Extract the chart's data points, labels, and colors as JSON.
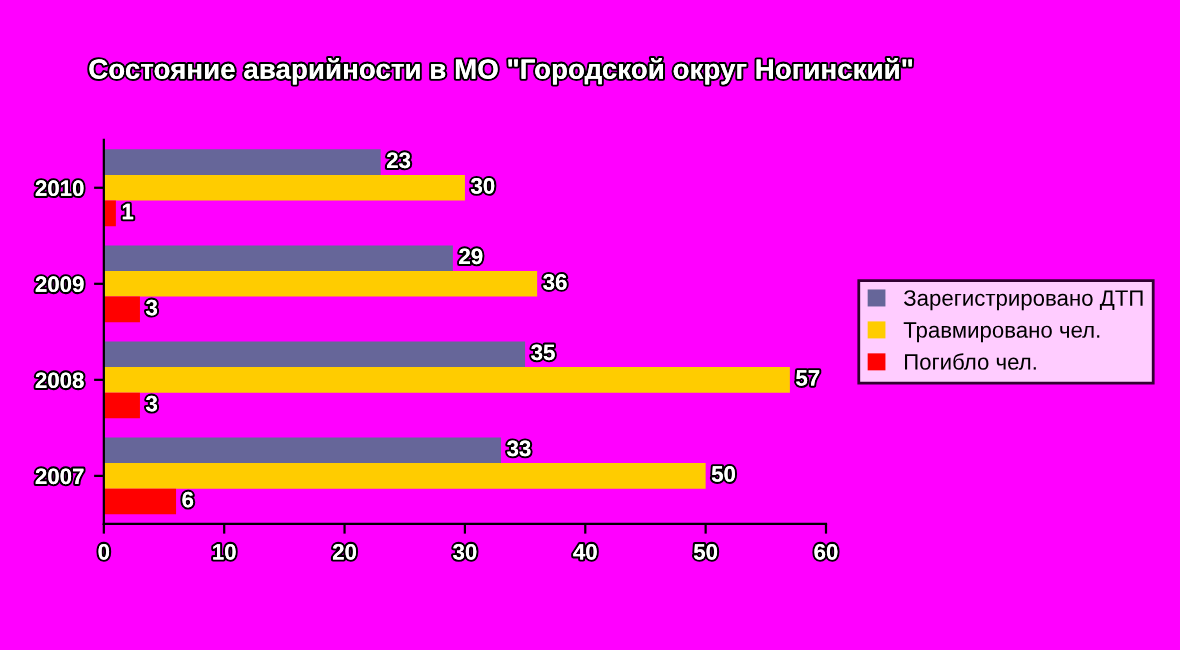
{
  "chart_data": {
    "type": "bar",
    "orientation": "horizontal",
    "title": "Состояние аварийности в МО \"Городской округ Ногинский\"",
    "categories": [
      "2010",
      "2009",
      "2008",
      "2007"
    ],
    "series": [
      {
        "name": "Зарегистрировано ДТП",
        "color": "#666699",
        "values": [
          23,
          29,
          35,
          33
        ]
      },
      {
        "name": "Травмировано чел.",
        "color": "#ffcc00",
        "values": [
          30,
          36,
          57,
          50
        ]
      },
      {
        "name": "Погибло чел.",
        "color": "#ff0000",
        "values": [
          1,
          3,
          3,
          6
        ]
      }
    ],
    "xlim": [
      0,
      60
    ],
    "xticks": [
      0,
      10,
      20,
      30,
      40,
      50,
      60
    ],
    "data_labels": true,
    "grid": false,
    "legend": "right"
  }
}
